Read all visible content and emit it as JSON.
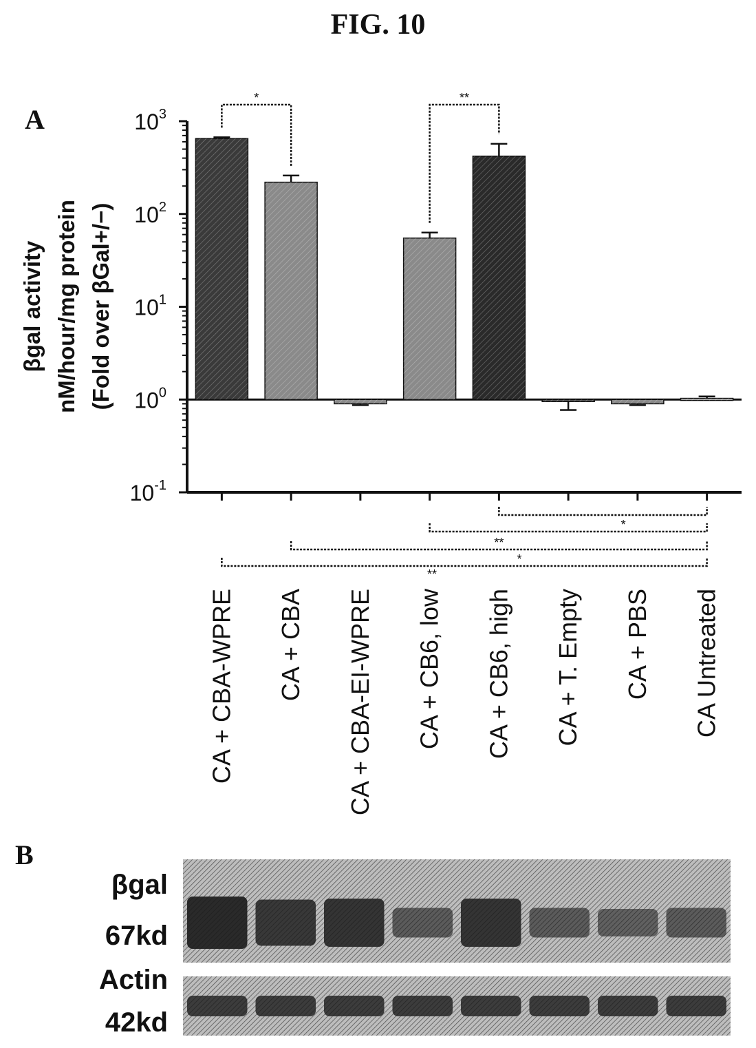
{
  "figure_title": "FIG. 10",
  "panel_a_label": "A",
  "panel_b_label": "B",
  "chart_data": {
    "type": "bar",
    "scale": "log",
    "ylabel_lines": [
      "βgal activity",
      "nM/hour/mg protein",
      "(Fold over βGal+/−)"
    ],
    "ylim": [
      0.1,
      1000
    ],
    "y_ticks": [
      {
        "value": 0.1,
        "base": "10",
        "exp": "-1"
      },
      {
        "value": 1,
        "base": "10",
        "exp": "0"
      },
      {
        "value": 10,
        "base": "10",
        "exp": "1"
      },
      {
        "value": 100,
        "base": "10",
        "exp": "2"
      },
      {
        "value": 1000,
        "base": "10",
        "exp": "3"
      }
    ],
    "baseline": 1,
    "categories": [
      "CA + CBA-WPRE",
      "CA + CBA",
      "CA + CBA-EI-WPRE",
      "CA + CB6, low",
      "CA + CB6, high",
      "CA + T. Empty",
      "CA + PBS",
      "CA Untreated"
    ],
    "values": [
      650,
      220,
      0.9,
      55,
      420,
      0.97,
      0.9,
      1.03
    ],
    "errors": [
      20,
      40,
      0.03,
      8,
      150,
      0.2,
      0.03,
      0.05
    ],
    "bar_colors": [
      "#3a3a3a",
      "#8a8a8a",
      "#8a8a8a",
      "#8a8a8a",
      "#2a2a2a",
      "#555555",
      "#8a8a8a",
      "#cccccc"
    ],
    "significance_top": [
      {
        "from": 0,
        "to": 1,
        "label": "*"
      },
      {
        "from": 3,
        "to": 4,
        "label": "**"
      }
    ],
    "significance_bottom": [
      {
        "from": 4,
        "to": 7,
        "label": ""
      },
      {
        "from": 3,
        "to": 7,
        "label": "*"
      },
      {
        "from": 1,
        "to": 7,
        "label": "**"
      },
      {
        "from": 0,
        "to": 7,
        "label": "*"
      }
    ],
    "extra_mark": "**"
  },
  "blot": {
    "rows": [
      {
        "label_top": "βgal",
        "label_bottom": "67kd",
        "intensities": [
          1.0,
          0.85,
          0.9,
          0.45,
          0.9,
          0.45,
          0.4,
          0.45
        ]
      },
      {
        "label_top": "Actin",
        "label_bottom": "42kd",
        "intensities": [
          0.8,
          0.8,
          0.8,
          0.8,
          0.8,
          0.8,
          0.8,
          0.8
        ]
      }
    ]
  }
}
